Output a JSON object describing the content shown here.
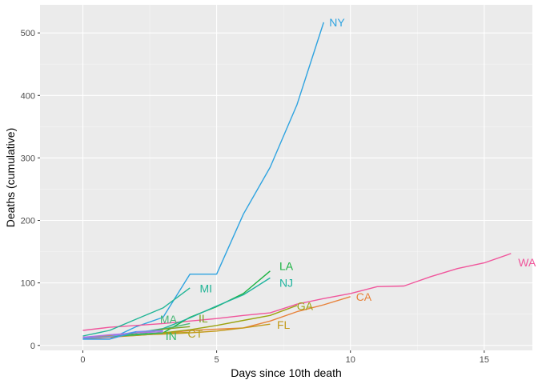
{
  "chart_data": {
    "type": "line",
    "title": "",
    "xlabel": "Days since 10th death",
    "ylabel": "Deaths (cumulative)",
    "xlim": [
      -1.6,
      16.8
    ],
    "ylim": [
      -8,
      545
    ],
    "x_ticks": [
      0,
      5,
      10,
      15
    ],
    "y_ticks": [
      0,
      100,
      200,
      300,
      400,
      500
    ],
    "grid": true,
    "legend": "none (direct labels at line ends)",
    "series": [
      {
        "name": "NY",
        "color": "#2ea3e0",
        "label_pos": [
          9.5,
          517
        ],
        "points": [
          [
            0,
            10
          ],
          [
            1,
            10
          ],
          [
            2,
            30
          ],
          [
            3,
            45
          ],
          [
            4,
            114
          ],
          [
            5,
            114
          ],
          [
            6,
            210
          ],
          [
            7,
            285
          ],
          [
            8,
            385
          ],
          [
            9,
            517
          ]
        ]
      },
      {
        "name": "WA",
        "color": "#f0569c",
        "label_pos": [
          16.6,
          133
        ],
        "points": [
          [
            0,
            24
          ],
          [
            1,
            29
          ],
          [
            2,
            32
          ],
          [
            3,
            35
          ],
          [
            4,
            39
          ],
          [
            5,
            43
          ],
          [
            6,
            48
          ],
          [
            7,
            52
          ],
          [
            8,
            66
          ],
          [
            9,
            75
          ],
          [
            10,
            83
          ],
          [
            11,
            94
          ],
          [
            12,
            95
          ],
          [
            13,
            110
          ],
          [
            14,
            123
          ],
          [
            15,
            132
          ],
          [
            16,
            147
          ]
        ]
      },
      {
        "name": "LA",
        "color": "#1ab241",
        "label_pos": [
          7.6,
          127
        ],
        "points": [
          [
            0,
            10
          ],
          [
            1,
            14
          ],
          [
            2,
            18
          ],
          [
            3,
            20
          ],
          [
            4,
            45
          ],
          [
            5,
            62
          ],
          [
            6,
            83
          ],
          [
            7,
            119
          ]
        ]
      },
      {
        "name": "NJ",
        "color": "#1fb39e",
        "label_pos": [
          7.6,
          100
        ],
        "points": [
          [
            0,
            11
          ],
          [
            1,
            16
          ],
          [
            2,
            20
          ],
          [
            3,
            27
          ],
          [
            4,
            44
          ],
          [
            5,
            63
          ],
          [
            6,
            81
          ],
          [
            7,
            108
          ]
        ]
      },
      {
        "name": "MI",
        "color": "#21b596",
        "label_pos": [
          4.6,
          91
        ],
        "points": [
          [
            0,
            15
          ],
          [
            1,
            24
          ],
          [
            2,
            42
          ],
          [
            3,
            60
          ],
          [
            4,
            92
          ]
        ]
      },
      {
        "name": "CA",
        "color": "#e8823a",
        "label_pos": [
          10.5,
          78
        ],
        "points": [
          [
            0,
            11
          ],
          [
            1,
            13
          ],
          [
            2,
            16
          ],
          [
            3,
            19
          ],
          [
            4,
            24
          ],
          [
            5,
            26
          ],
          [
            6,
            28
          ],
          [
            7,
            39
          ],
          [
            8,
            54
          ],
          [
            9,
            65
          ],
          [
            10,
            78
          ]
        ]
      },
      {
        "name": "GA",
        "color": "#9ca311",
        "label_pos": [
          8.3,
          63
        ],
        "points": [
          [
            0,
            12
          ],
          [
            1,
            14
          ],
          [
            2,
            17
          ],
          [
            3,
            20
          ],
          [
            4,
            25
          ],
          [
            5,
            32
          ],
          [
            6,
            40
          ],
          [
            7,
            48
          ],
          [
            8,
            64
          ]
        ]
      },
      {
        "name": "MA",
        "color": "#49b877",
        "label_pos": [
          3.2,
          42
        ],
        "points": [
          [
            0,
            11
          ],
          [
            1,
            15
          ],
          [
            2,
            17
          ],
          [
            3,
            26
          ],
          [
            4,
            35
          ]
        ]
      },
      {
        "name": "IL",
        "color": "#7ca11f",
        "label_pos": [
          4.5,
          43
        ],
        "points": [
          [
            0,
            12
          ],
          [
            1,
            14
          ],
          [
            2,
            20
          ],
          [
            3,
            26
          ],
          [
            4,
            30
          ]
        ]
      },
      {
        "name": "FL",
        "color": "#c39a1a",
        "label_pos": [
          7.5,
          33
        ],
        "points": [
          [
            0,
            13
          ],
          [
            1,
            15
          ],
          [
            2,
            17
          ],
          [
            3,
            18
          ],
          [
            4,
            20
          ],
          [
            5,
            23
          ],
          [
            6,
            28
          ],
          [
            7,
            34
          ]
        ]
      },
      {
        "name": "CT",
        "color": "#b7a01b",
        "label_pos": [
          4.2,
          19
        ],
        "points": [
          [
            0,
            12
          ],
          [
            1,
            14
          ],
          [
            2,
            16
          ],
          [
            3,
            19
          ],
          [
            4,
            21
          ]
        ]
      },
      {
        "name": "IN",
        "color": "#2fb868",
        "label_pos": [
          3.3,
          15
        ],
        "points": [
          [
            0,
            12
          ],
          [
            1,
            14
          ],
          [
            2,
            17
          ],
          [
            3,
            20
          ]
        ]
      },
      {
        "name": "",
        "color": "#7b8cf5",
        "points": [
          [
            0,
            12
          ],
          [
            1,
            14
          ],
          [
            2,
            22
          ],
          [
            3,
            24
          ]
        ]
      },
      {
        "name": "",
        "color": "#b072e8",
        "points": [
          [
            0,
            13
          ],
          [
            1,
            17
          ],
          [
            2,
            20
          ],
          [
            3,
            22
          ]
        ]
      },
      {
        "name": "",
        "color": "#3f97e8",
        "points": [
          [
            0,
            10
          ],
          [
            1,
            10
          ],
          [
            2,
            22
          ]
        ]
      }
    ]
  }
}
